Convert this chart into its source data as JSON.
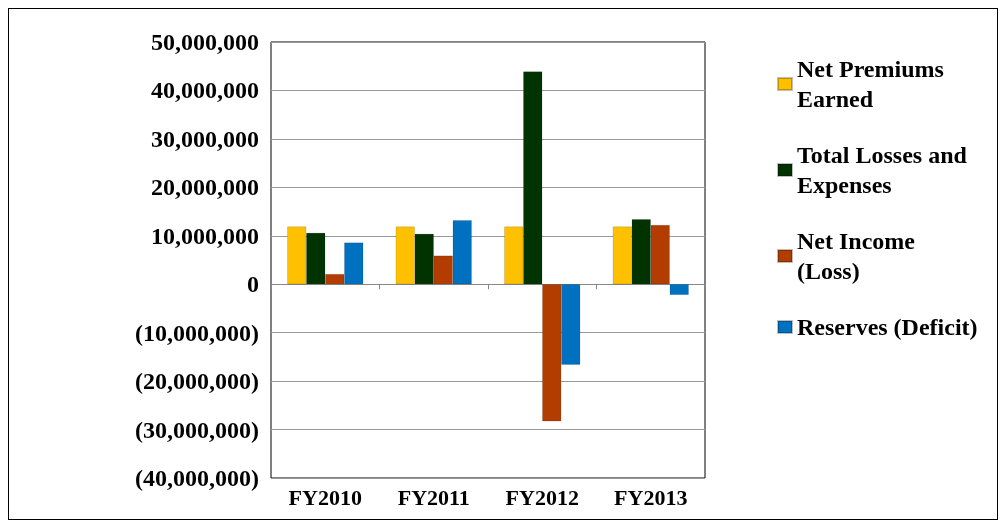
{
  "chart_data": {
    "type": "bar",
    "categories": [
      "FY2010",
      "FY2011",
      "FY2012",
      "FY2013"
    ],
    "series": [
      {
        "name": "Net Premiums Earned",
        "color": "#ffc000",
        "values": [
          11900000,
          11900000,
          11900000,
          11900000
        ]
      },
      {
        "name": "Total Losses and Expenses",
        "color": "#003300",
        "values": [
          10600000,
          10400000,
          43900000,
          13400000
        ]
      },
      {
        "name": "Net Income (Loss)",
        "color": "#b33c00",
        "values": [
          2100000,
          5900000,
          -28300000,
          12200000
        ]
      },
      {
        "name": "Reserves (Deficit)",
        "color": "#0070c0",
        "values": [
          8600000,
          13200000,
          -16600000,
          -2200000
        ]
      }
    ],
    "ylim": [
      -40000000,
      50000000
    ],
    "yticks": [
      {
        "value": -40000000,
        "label": "(40,000,000)"
      },
      {
        "value": -30000000,
        "label": "(30,000,000)"
      },
      {
        "value": -20000000,
        "label": "(20,000,000)"
      },
      {
        "value": -10000000,
        "label": "(10,000,000)"
      },
      {
        "value": 0,
        "label": "0"
      },
      {
        "value": 10000000,
        "label": "10,000,000"
      },
      {
        "value": 20000000,
        "label": "20,000,000"
      },
      {
        "value": 30000000,
        "label": "30,000,000"
      },
      {
        "value": 40000000,
        "label": "40,000,000"
      },
      {
        "value": 50000000,
        "label": "50,000,000"
      }
    ],
    "grid": "y",
    "legend": "right"
  }
}
